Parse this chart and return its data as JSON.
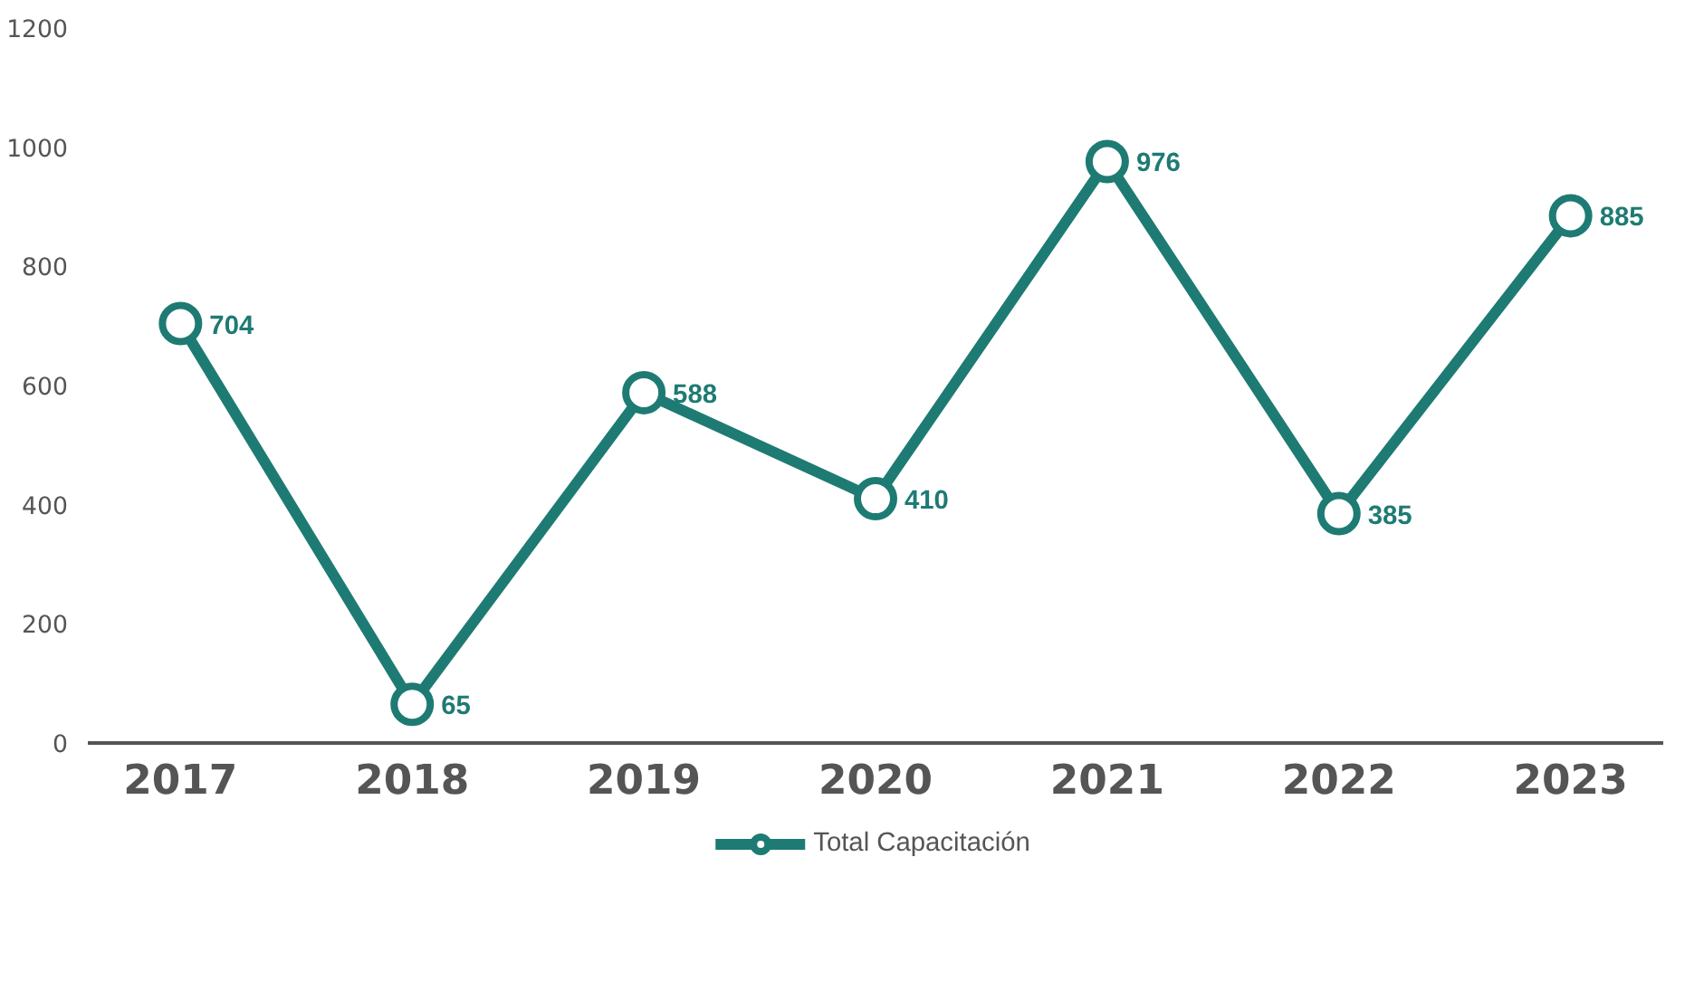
{
  "chart_data": {
    "type": "line",
    "categories": [
      "2017",
      "2018",
      "2019",
      "2020",
      "2021",
      "2022",
      "2023"
    ],
    "series": [
      {
        "name": "Total Capacitación",
        "color": "#1e7b73",
        "values": [
          704,
          65,
          588,
          410,
          976,
          385,
          885
        ]
      }
    ],
    "ylim": [
      0,
      1200
    ],
    "yticks": [
      0,
      200,
      400,
      600,
      800,
      1000,
      1200
    ],
    "data_labels": true,
    "grid": false,
    "legend": "bottom",
    "marker": "circle",
    "line_style": "solid"
  }
}
